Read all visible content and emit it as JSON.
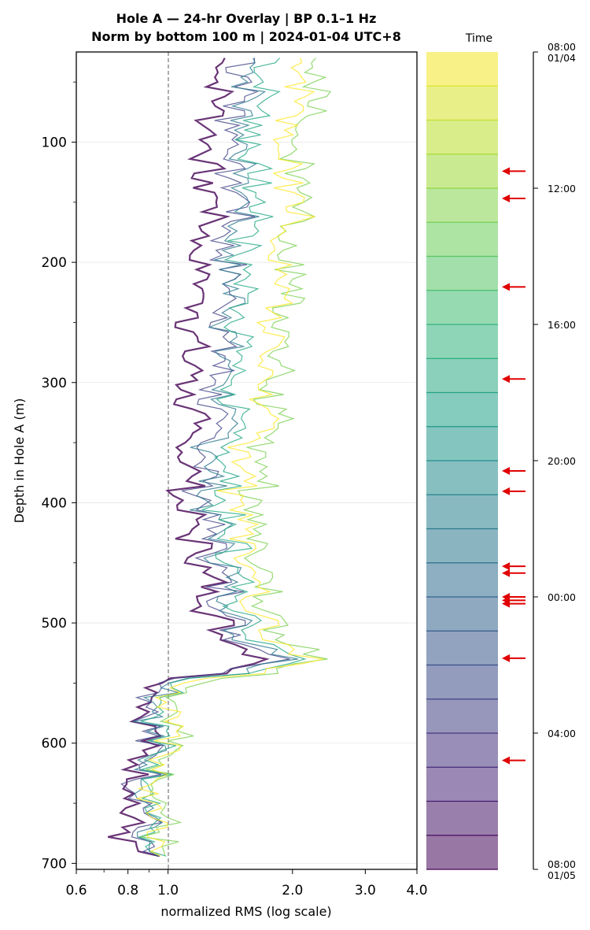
{
  "chart_data": {
    "type": "line",
    "title": "Hole A — 24-hr Overlay  |  BP 0.1–1 Hz",
    "subtitle": "Norm by bottom 100 m  |  2024-01-04 UTC+8",
    "xlabel": "normalized RMS  (log scale)",
    "ylabel": "Depth in Hole A (m)",
    "x_scale": "log",
    "xlim": [
      0.6,
      4.0
    ],
    "ylim": [
      705,
      25
    ],
    "x_ticks": [
      {
        "value": 0.6,
        "label": "0.6"
      },
      {
        "value": 0.8,
        "label": "0.8"
      },
      {
        "value": 1.0,
        "label": "1.0"
      },
      {
        "value": 2.0,
        "label": "2.0"
      },
      {
        "value": 3.0,
        "label": "3.0"
      },
      {
        "value": 4.0,
        "label": "4.0"
      }
    ],
    "y_ticks": [
      {
        "value": 100,
        "label": "100"
      },
      {
        "value": 200,
        "label": "200"
      },
      {
        "value": 300,
        "label": "300"
      },
      {
        "value": 400,
        "label": "400"
      },
      {
        "value": 500,
        "label": "500"
      },
      {
        "value": 600,
        "label": "600"
      },
      {
        "value": 700,
        "label": "700"
      }
    ],
    "reference_line_x": 1.0,
    "grid": "horizontal",
    "series_count": 24,
    "colormap": "viridis (24 hourly series, purple = later, yellow = earlier)",
    "series": [
      {
        "hour": "08:00",
        "color": "#fde725",
        "values": [
          [
            2.05,
            30
          ],
          [
            2.2,
            60
          ],
          [
            1.9,
            100
          ],
          [
            1.95,
            135
          ],
          [
            2.1,
            155
          ],
          [
            1.8,
            185
          ],
          [
            1.9,
            230
          ],
          [
            1.75,
            280
          ],
          [
            1.6,
            350
          ],
          [
            1.5,
            400
          ],
          [
            1.6,
            450
          ],
          [
            1.7,
            490
          ],
          [
            1.75,
            510
          ],
          [
            2.35,
            530
          ],
          [
            1.25,
            548
          ],
          [
            1.05,
            560
          ],
          [
            1.0,
            600
          ],
          [
            0.95,
            640
          ],
          [
            0.95,
            680
          ],
          [
            0.92,
            695
          ]
        ]
      },
      {
        "hour": "12:00",
        "color": "#7ad151",
        "values": [
          [
            2.25,
            30
          ],
          [
            2.4,
            60
          ],
          [
            2.0,
            100
          ],
          [
            2.05,
            135
          ],
          [
            2.2,
            155
          ],
          [
            1.9,
            185
          ],
          [
            2.0,
            230
          ],
          [
            1.85,
            280
          ],
          [
            1.75,
            350
          ],
          [
            1.6,
            400
          ],
          [
            1.65,
            450
          ],
          [
            1.8,
            490
          ],
          [
            1.85,
            510
          ],
          [
            2.5,
            530
          ],
          [
            1.3,
            548
          ],
          [
            1.1,
            560
          ],
          [
            1.05,
            600
          ],
          [
            0.97,
            640
          ],
          [
            0.95,
            680
          ],
          [
            0.93,
            695
          ]
        ]
      },
      {
        "hour": "16:00",
        "color": "#22a884",
        "values": [
          [
            1.8,
            30
          ],
          [
            1.7,
            60
          ],
          [
            1.6,
            100
          ],
          [
            1.6,
            135
          ],
          [
            1.7,
            155
          ],
          [
            1.55,
            185
          ],
          [
            1.55,
            230
          ],
          [
            1.5,
            280
          ],
          [
            1.4,
            350
          ],
          [
            1.35,
            400
          ],
          [
            1.45,
            450
          ],
          [
            1.55,
            490
          ],
          [
            1.6,
            510
          ],
          [
            2.2,
            530
          ],
          [
            1.15,
            548
          ],
          [
            1.0,
            560
          ],
          [
            0.95,
            600
          ],
          [
            0.92,
            640
          ],
          [
            0.9,
            680
          ],
          [
            0.9,
            695
          ]
        ]
      },
      {
        "hour": "20:00",
        "color": "#2a788e",
        "values": [
          [
            1.65,
            30
          ],
          [
            1.55,
            60
          ],
          [
            1.5,
            100
          ],
          [
            1.5,
            135
          ],
          [
            1.6,
            155
          ],
          [
            1.45,
            185
          ],
          [
            1.45,
            230
          ],
          [
            1.4,
            280
          ],
          [
            1.3,
            350
          ],
          [
            1.25,
            400
          ],
          [
            1.4,
            450
          ],
          [
            1.45,
            490
          ],
          [
            1.5,
            510
          ],
          [
            2.1,
            530
          ],
          [
            1.1,
            548
          ],
          [
            0.98,
            560
          ],
          [
            0.92,
            600
          ],
          [
            0.9,
            640
          ],
          [
            0.88,
            680
          ],
          [
            0.9,
            695
          ]
        ]
      },
      {
        "hour": "00:00",
        "color": "#414487",
        "values": [
          [
            1.55,
            30
          ],
          [
            1.5,
            60
          ],
          [
            1.45,
            100
          ],
          [
            1.45,
            135
          ],
          [
            1.55,
            155
          ],
          [
            1.4,
            185
          ],
          [
            1.4,
            230
          ],
          [
            1.35,
            280
          ],
          [
            1.25,
            350
          ],
          [
            1.2,
            400
          ],
          [
            1.35,
            450
          ],
          [
            1.4,
            490
          ],
          [
            1.45,
            510
          ],
          [
            1.95,
            530
          ],
          [
            1.05,
            548
          ],
          [
            0.96,
            560
          ],
          [
            0.9,
            600
          ],
          [
            0.88,
            640
          ],
          [
            0.86,
            680
          ],
          [
            0.9,
            695
          ]
        ]
      },
      {
        "hour": "04:00",
        "color": "#440154",
        "values": [
          [
            1.35,
            30
          ],
          [
            1.3,
            60
          ],
          [
            1.25,
            100
          ],
          [
            1.2,
            135
          ],
          [
            1.35,
            155
          ],
          [
            1.2,
            185
          ],
          [
            1.2,
            230
          ],
          [
            1.15,
            280
          ],
          [
            1.12,
            350
          ],
          [
            1.1,
            400
          ],
          [
            1.2,
            450
          ],
          [
            1.3,
            490
          ],
          [
            1.35,
            510
          ],
          [
            1.8,
            530
          ],
          [
            1.0,
            548
          ],
          [
            0.95,
            560
          ],
          [
            0.88,
            600
          ],
          [
            0.85,
            640
          ],
          [
            0.8,
            680
          ],
          [
            0.88,
            695
          ]
        ]
      }
    ],
    "colorbar": {
      "label": "Time",
      "ticks": [
        {
          "label": "08:00\n01/04",
          "line1": "08:00",
          "line2": "01/04"
        },
        {
          "label": "12:00",
          "line1": "12:00",
          "line2": ""
        },
        {
          "label": "16:00",
          "line1": "16:00",
          "line2": ""
        },
        {
          "label": "20:00",
          "line1": "20:00",
          "line2": ""
        },
        {
          "label": "00:00",
          "line1": "00:00",
          "line2": ""
        },
        {
          "label": "04:00",
          "line1": "04:00",
          "line2": ""
        },
        {
          "label": "08:00\n01/05",
          "line1": "08:00",
          "line2": "01/05"
        }
      ],
      "bands": 24,
      "arrow_hours": [
        11.5,
        12.3,
        14.9,
        17.6,
        20.3,
        20.9,
        23.1,
        23.3,
        24.0,
        24.1,
        24.2,
        25.8,
        28.8
      ]
    }
  }
}
